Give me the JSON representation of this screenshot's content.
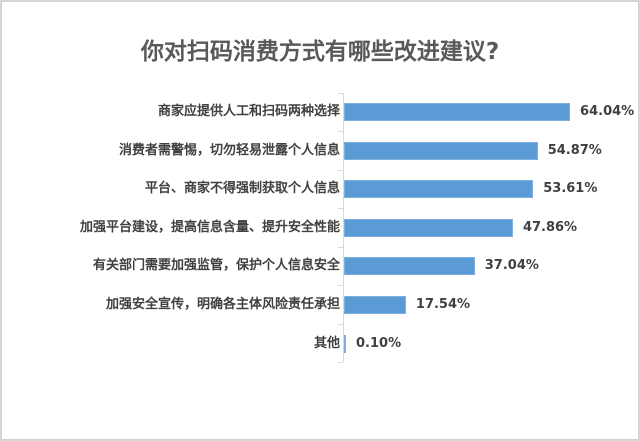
{
  "title": "你对扫码消费方式有哪些改进建议?",
  "colors": {
    "bar": "#5b9bd5",
    "text": "#404040",
    "title": "#595959"
  },
  "chart_data": {
    "type": "bar",
    "orientation": "horizontal",
    "title": "你对扫码消费方式有哪些改进建议?",
    "categories": [
      "商家应提供人工和扫码两种选择",
      "消费者需警惕，切勿轻易泄露个人信息",
      "平台、商家不得强制获取个人信息",
      "加强平台建设，提高信息含量、提升安全性能",
      "有关部门需要加强监管，保护个人信息安全",
      "加强安全宣传，明确各主体风险责任承担",
      "其他"
    ],
    "values": [
      64.04,
      54.87,
      53.61,
      47.86,
      37.04,
      17.54,
      0.1
    ],
    "value_labels": [
      "64.04%",
      "54.87%",
      "53.61%",
      "47.86%",
      "37.04%",
      "17.54%",
      "0.10%"
    ],
    "xlabel": "",
    "ylabel": "",
    "grid": false,
    "legend": false,
    "data_labels": true
  }
}
